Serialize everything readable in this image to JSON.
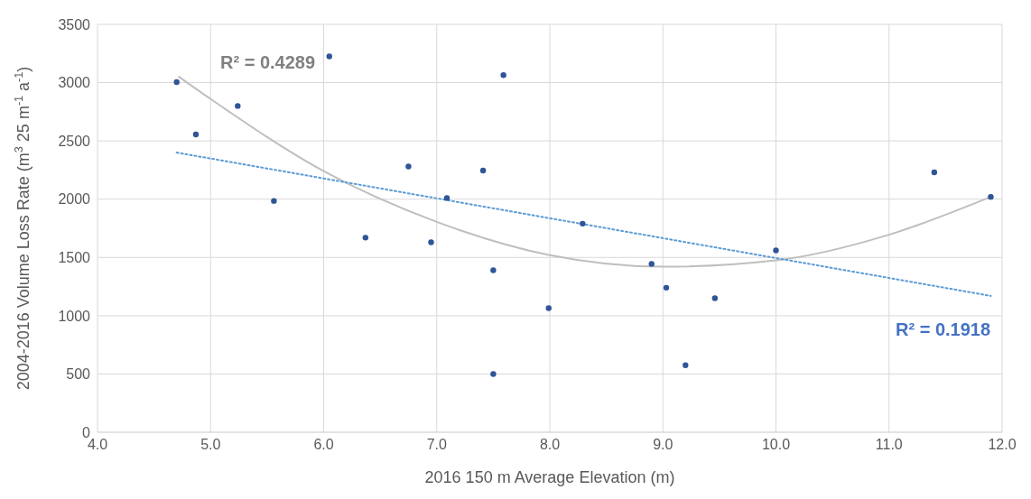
{
  "chart_data": {
    "type": "scatter",
    "xlabel": "2016 150 m Average Elevation (m)",
    "ylabel": "2004-2016 Volume Loss Rate (m$^{3}$ 25 m$^{-1}$ a$^{-1}$)",
    "xlim": [
      4.0,
      12.0
    ],
    "xticks": [
      {
        "value": 4,
        "label": "4.0"
      },
      {
        "value": 5,
        "label": "5.0"
      },
      {
        "value": 6,
        "label": "6.0"
      },
      {
        "value": 7,
        "label": "7.0"
      },
      {
        "value": 8,
        "label": "8.0"
      },
      {
        "value": 9,
        "label": "9.0"
      },
      {
        "value": 10,
        "label": "10.0"
      },
      {
        "value": 11,
        "label": "11.0"
      },
      {
        "value": 12,
        "label": "12.0"
      }
    ],
    "ylim": [
      0,
      3500
    ],
    "yticks": [
      0,
      500,
      1000,
      1500,
      2000,
      2500,
      3000,
      3500
    ],
    "grid": true,
    "legend": false,
    "series": [
      {
        "color": "#2f5597",
        "marker": "circle",
        "x": [
          4.7,
          4.87,
          5.24,
          5.56,
          6.05,
          6.37,
          6.75,
          6.95,
          7.09,
          7.41,
          7.5,
          7.5,
          7.59,
          7.99,
          8.29,
          8.9,
          9.03,
          9.2,
          9.46,
          10.0,
          11.4,
          11.9
        ],
        "values": [
          3005,
          2555,
          2800,
          1985,
          3225,
          1670,
          2280,
          1630,
          2010,
          2245,
          1390,
          500,
          3065,
          1065,
          1790,
          1445,
          1240,
          575,
          1150,
          1560,
          2230,
          2020
        ]
      },
      {
        "type": "line",
        "color": "#bfbfbf",
        "marker": "none",
        "line_style": "solid",
        "x": [
          4.72,
          5.0,
          6.0,
          7.0,
          8.0,
          9.0,
          10.0,
          11.0,
          11.9
        ],
        "values": [
          3050,
          2860,
          2240,
          1805,
          1520,
          1420,
          1475,
          1695,
          2020
        ]
      },
      {
        "type": "line",
        "color": "#5b9bd5",
        "marker": "none",
        "line_style": "dotted",
        "x": [
          4.7,
          11.9
        ],
        "values": [
          2400,
          1170
        ]
      }
    ],
    "annotations": [
      "R² = 0.4289",
      "R² = 0.1918"
    ]
  }
}
